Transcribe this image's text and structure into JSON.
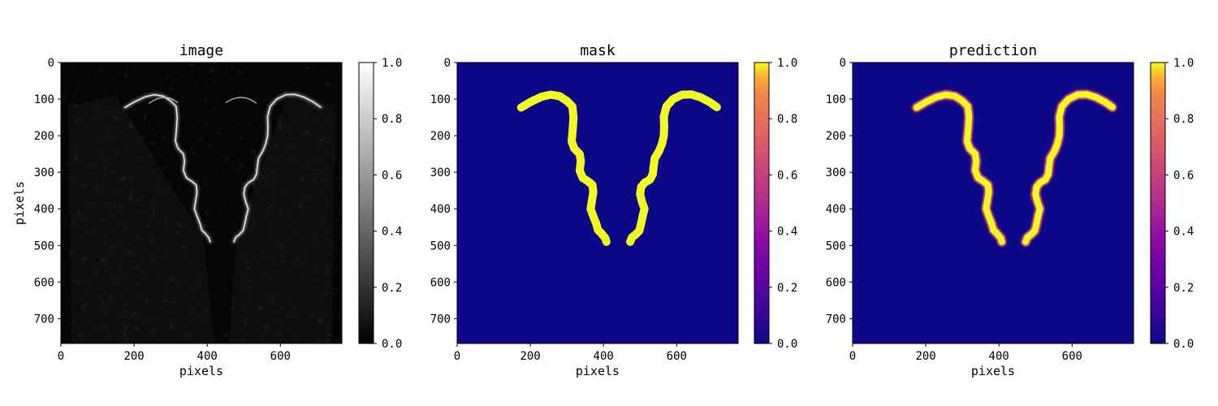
{
  "chart_data": [
    {
      "type": "heatmap",
      "title": "image",
      "xlabel": "pixels",
      "ylabel": "pixels",
      "xlim": [
        0,
        768
      ],
      "ylim": [
        768,
        0
      ],
      "xticks": [
        0,
        200,
        400,
        600
      ],
      "yticks": [
        0,
        100,
        200,
        300,
        400,
        500,
        600,
        700
      ],
      "colormap": "gray",
      "colorbar": {
        "range": [
          0.0,
          1.0
        ],
        "ticks": [
          "0.0",
          "0.2",
          "0.4",
          "0.6",
          "0.8",
          "1.0"
        ]
      },
      "content": "dark grayscale micrograph with two bright mirrored edge curves"
    },
    {
      "type": "heatmap",
      "title": "mask",
      "xlabel": "pixels",
      "ylabel": "",
      "xlim": [
        0,
        768
      ],
      "ylim": [
        768,
        0
      ],
      "xticks": [
        0,
        200,
        400,
        600
      ],
      "yticks": [
        0,
        100,
        200,
        300,
        400,
        500,
        600,
        700
      ],
      "colormap": "plasma",
      "colorbar": {
        "range": [
          0.0,
          1.0
        ],
        "ticks": [
          "0.0",
          "0.2",
          "0.4",
          "0.6",
          "0.8",
          "1.0"
        ]
      },
      "background_value": 0.0,
      "curve_value": 1.0
    },
    {
      "type": "heatmap",
      "title": "prediction",
      "xlabel": "pixels",
      "ylabel": "",
      "xlim": [
        0,
        768
      ],
      "ylim": [
        768,
        0
      ],
      "xticks": [
        0,
        200,
        400,
        600
      ],
      "yticks": [
        0,
        100,
        200,
        300,
        400,
        500,
        600,
        700
      ],
      "colormap": "plasma",
      "colorbar": {
        "range": [
          0.0,
          1.0
        ],
        "ticks": [
          "0.0",
          "0.2",
          "0.4",
          "0.6",
          "0.8",
          "1.0"
        ]
      },
      "background_value": 0.0,
      "curve_value": 1.0
    }
  ],
  "curves": {
    "left": [
      [
        175,
        123
      ],
      [
        200,
        108
      ],
      [
        230,
        94
      ],
      [
        255,
        88
      ],
      [
        280,
        92
      ],
      [
        300,
        105
      ],
      [
        315,
        120
      ],
      [
        318,
        150
      ],
      [
        316,
        180
      ],
      [
        313,
        215
      ],
      [
        320,
        235
      ],
      [
        335,
        250
      ],
      [
        338,
        270
      ],
      [
        335,
        295
      ],
      [
        343,
        315
      ],
      [
        358,
        325
      ],
      [
        370,
        335
      ],
      [
        372,
        355
      ],
      [
        368,
        380
      ],
      [
        365,
        400
      ],
      [
        372,
        420
      ],
      [
        380,
        440
      ],
      [
        385,
        458
      ],
      [
        395,
        468
      ],
      [
        405,
        480
      ],
      [
        408,
        490
      ]
    ],
    "right": [
      [
        473,
        490
      ],
      [
        478,
        478
      ],
      [
        488,
        470
      ],
      [
        498,
        460
      ],
      [
        503,
        440
      ],
      [
        507,
        420
      ],
      [
        512,
        400
      ],
      [
        505,
        380
      ],
      [
        500,
        360
      ],
      [
        503,
        340
      ],
      [
        513,
        328
      ],
      [
        527,
        320
      ],
      [
        535,
        305
      ],
      [
        537,
        285
      ],
      [
        540,
        262
      ],
      [
        552,
        242
      ],
      [
        560,
        222
      ],
      [
        565,
        200
      ],
      [
        566,
        175
      ],
      [
        565,
        148
      ],
      [
        572,
        120
      ],
      [
        590,
        100
      ],
      [
        615,
        88
      ],
      [
        640,
        87
      ],
      [
        665,
        95
      ],
      [
        690,
        108
      ],
      [
        710,
        122
      ]
    ]
  },
  "colors": {
    "plasma_low": "#0d0887",
    "plasma_high": "#f0f921",
    "gray_low": "#000000",
    "gray_high": "#ffffff"
  }
}
